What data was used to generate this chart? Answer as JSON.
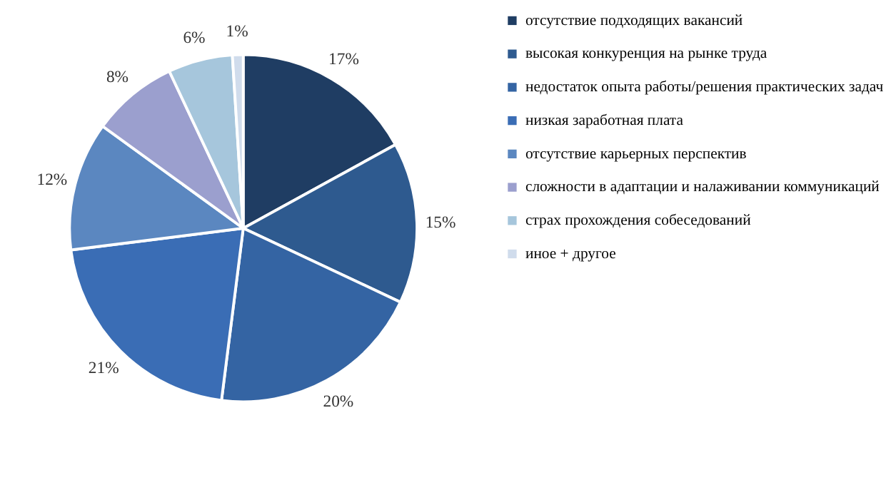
{
  "chart_data": {
    "type": "pie",
    "categories": [
      "отсутствие подходящих вакансий",
      "высокая конкуренция на рынке труда",
      "недостаток опыта работы/решения практических задач",
      "низкая заработная плата",
      "отсутствие карьерных перспектив",
      "сложности в адаптации и налаживании коммуникаций",
      "страх прохождения собеседований",
      "иное + другое"
    ],
    "values": [
      17,
      15,
      20,
      21,
      12,
      8,
      6,
      1
    ],
    "value_labels": [
      "17%",
      "15%",
      "20%",
      "21%",
      "12%",
      "8%",
      "6%",
      "1%"
    ],
    "colors": [
      "#1f3d63",
      "#2e5a8f",
      "#3464a3",
      "#3a6db5",
      "#5b87c0",
      "#9b9fce",
      "#a6c6dc",
      "#d0dcec"
    ],
    "legend": "right"
  }
}
